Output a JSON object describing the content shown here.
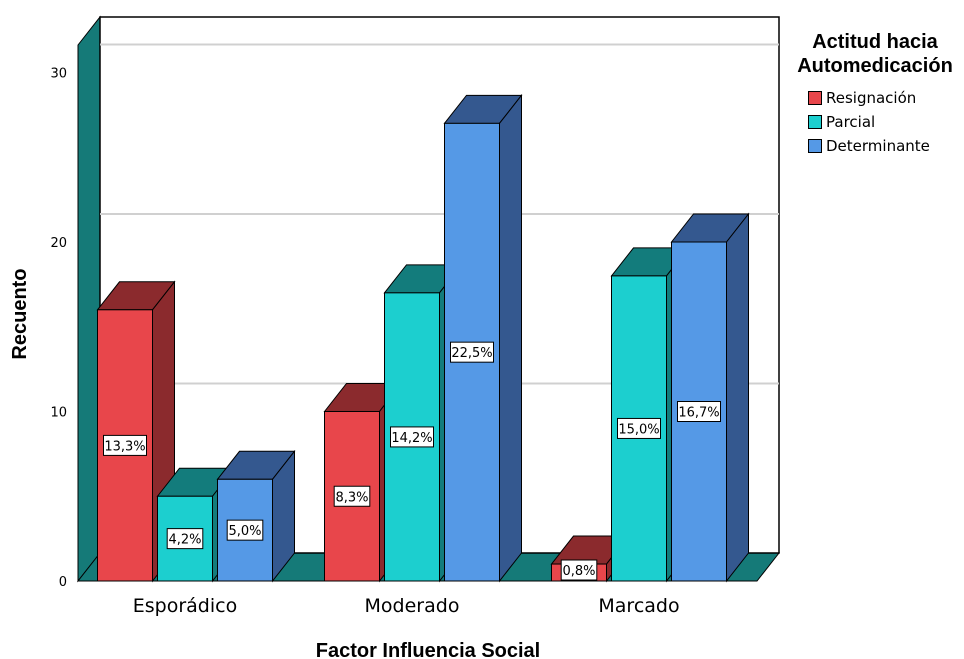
{
  "chart_data": {
    "type": "bar",
    "categories": [
      "Esporádico",
      "Moderado",
      "Marcado"
    ],
    "series": [
      {
        "name": "Resignación",
        "values": [
          16,
          10,
          1
        ],
        "labels": [
          "13,3%",
          "8,3%",
          "0,8%"
        ]
      },
      {
        "name": "Parcial",
        "values": [
          5,
          17,
          18
        ],
        "labels": [
          "4,2%",
          "14,2%",
          "15,0%"
        ]
      },
      {
        "name": "Determinante",
        "values": [
          6,
          27,
          20
        ],
        "labels": [
          "5,0%",
          "22,5%",
          "16,7%"
        ]
      }
    ],
    "xlabel": "Factor Influencia Social",
    "ylabel": "Recuento",
    "ylim": [
      0,
      32
    ],
    "yticks": [
      0,
      10,
      20,
      30
    ],
    "ytick_labels": [
      "0",
      "10",
      "20",
      "30"
    ],
    "grid": true,
    "legend": {
      "title_lines": [
        "Actitud hacia",
        "Automedicación"
      ],
      "position": "right"
    },
    "colors": {
      "Resignación": {
        "front": "#e8464b",
        "side": "#8b2a2d",
        "top": "#8b2a2d"
      },
      "Parcial": {
        "front": "#1ccfcf",
        "side": "#137c7c",
        "top": "#137c7c"
      },
      "Determinante": {
        "front": "#5599e6",
        "side": "#34588f",
        "top": "#34588f"
      },
      "wall": "#157a78",
      "gridline": "#d0d0d0"
    }
  }
}
